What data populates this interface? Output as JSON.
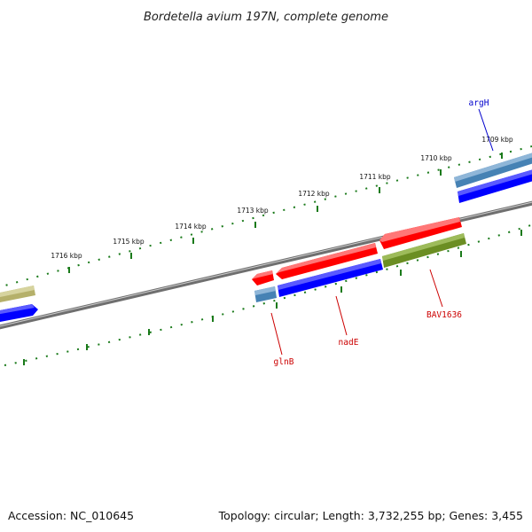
{
  "title": "Bordetella avium 197N, complete genome",
  "footer": {
    "accession": "Accession: NC_010645",
    "topology": "Topology: circular; Length: 3,732,255 bp; Genes: 3,455"
  },
  "kbp_labels": [
    "1709 kbp",
    "1710 kbp",
    "1711 kbp",
    "1712 kbp",
    "1713 kbp",
    "1714 kbp",
    "1715 kbp",
    "1716 kbp"
  ],
  "gene_labels": [
    {
      "name": "argH",
      "color": "#0000cc"
    },
    {
      "name": "glnB",
      "color": "#cc0000"
    },
    {
      "name": "nadE",
      "color": "#cc0000"
    },
    {
      "name": "BAV1636",
      "color": "#cc0000"
    }
  ],
  "colors": {
    "forward_cds": "#ff0000",
    "reverse_cds": "#0000ff",
    "gene_steelblue": "#4682b4",
    "gene_olive": "#6b8e23",
    "gene_khaki": "#b5b06a",
    "tick": "#1a7a1a",
    "backbone": "#777777"
  }
}
